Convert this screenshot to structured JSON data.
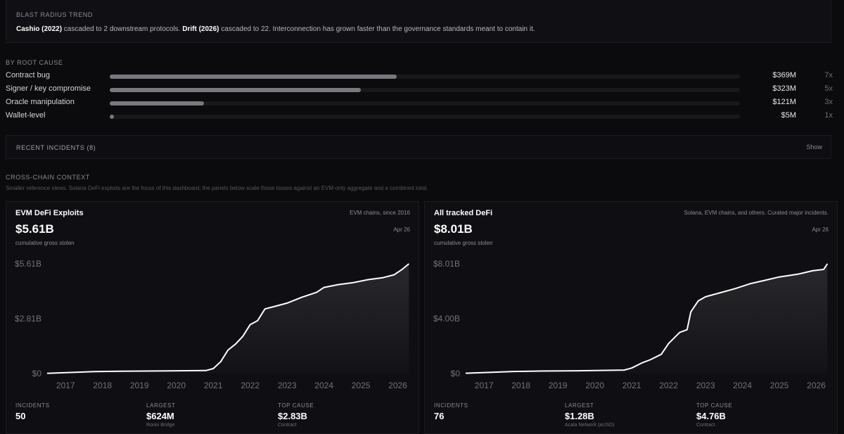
{
  "blast": {
    "title": "BLAST RADIUS TREND",
    "seg1_bold": "Cashio (2022)",
    "seg1_rest": " cascaded to 2 downstream protocols. ",
    "seg2_bold": "Drift (2026)",
    "seg2_rest": " cascaded to 22. Interconnection has grown faster than the governance standards meant to contain it."
  },
  "root_cause": {
    "title": "BY ROOT CAUSE",
    "max_amount_musd": 810,
    "items": [
      {
        "name": "Contract bug",
        "amount": "$369M",
        "amount_musd": 369,
        "count": "7x"
      },
      {
        "name": "Signer / key compromise",
        "amount": "$323M",
        "amount_musd": 323,
        "count": "5x"
      },
      {
        "name": "Oracle manipulation",
        "amount": "$121M",
        "amount_musd": 121,
        "count": "3x"
      },
      {
        "name": "Wallet-level",
        "amount": "$5M",
        "amount_musd": 5,
        "count": "1x"
      }
    ]
  },
  "recent": {
    "title": "RECENT INCIDENTS (8)",
    "toggle": "Show"
  },
  "cross_chain": {
    "title": "CROSS-CHAIN CONTEXT",
    "subtitle": "Smaller reference views. Solana DeFi exploits are the focus of this dashboard; the panels below scale those losses against an EVM-only aggregate and a combined total."
  },
  "panels": [
    {
      "name": "EVM DeFi Exploits",
      "meta": "EVM chains, since 2016",
      "total": "$5.61B",
      "date": "Apr 26",
      "caption": "cumulative gross stolen",
      "stats": [
        {
          "label": "INCIDENTS",
          "value": "50",
          "sub": ""
        },
        {
          "label": "LARGEST",
          "value": "$624M",
          "sub": "Ronin Bridge"
        },
        {
          "label": "TOP CAUSE",
          "value": "$2.83B",
          "sub": "Contract"
        }
      ]
    },
    {
      "name": "All tracked DeFi",
      "meta": "Solana, EVM chains, and others. Curated major incidents.",
      "total": "$8.01B",
      "date": "Apr 26",
      "caption": "cumulative gross stolen",
      "stats": [
        {
          "label": "INCIDENTS",
          "value": "76",
          "sub": ""
        },
        {
          "label": "LARGEST",
          "value": "$1.28B",
          "sub": "Acala Network (aUSD)"
        },
        {
          "label": "TOP CAUSE",
          "value": "$4.76B",
          "sub": "Contract"
        }
      ]
    }
  ],
  "chart_data": [
    {
      "type": "area",
      "title": "EVM DeFi Exploits",
      "x_ticks": [
        "2017",
        "2018",
        "2019",
        "2020",
        "2021",
        "2022",
        "2023",
        "2024",
        "2025",
        "2026"
      ],
      "y_ticks": [
        "$0",
        "$2.81B",
        "$5.61B"
      ],
      "xlim": [
        2016.5,
        2026.35
      ],
      "ylim": [
        0,
        5.61
      ],
      "series": [
        {
          "points": [
            [
              2016.5,
              0.01
            ],
            [
              2017.8,
              0.1
            ],
            [
              2018.5,
              0.12
            ],
            [
              2019.5,
              0.13
            ],
            [
              2020.8,
              0.15
            ],
            [
              2021.0,
              0.25
            ],
            [
              2021.2,
              0.6
            ],
            [
              2021.4,
              1.2
            ],
            [
              2021.6,
              1.5
            ],
            [
              2021.8,
              1.9
            ],
            [
              2022.0,
              2.5
            ],
            [
              2022.2,
              2.7
            ],
            [
              2022.4,
              3.3
            ],
            [
              2022.7,
              3.45
            ],
            [
              2023.0,
              3.6
            ],
            [
              2023.4,
              3.9
            ],
            [
              2023.8,
              4.15
            ],
            [
              2024.0,
              4.4
            ],
            [
              2024.4,
              4.55
            ],
            [
              2024.8,
              4.65
            ],
            [
              2025.2,
              4.8
            ],
            [
              2025.6,
              4.9
            ],
            [
              2025.9,
              5.05
            ],
            [
              2026.1,
              5.3
            ],
            [
              2026.3,
              5.61
            ]
          ]
        }
      ]
    },
    {
      "type": "area",
      "title": "All tracked DeFi",
      "x_ticks": [
        "2017",
        "2018",
        "2019",
        "2020",
        "2021",
        "2022",
        "2023",
        "2024",
        "2025",
        "2026"
      ],
      "y_ticks": [
        "$0",
        "$4.00B",
        "$8.01B"
      ],
      "xlim": [
        2016.5,
        2026.35
      ],
      "ylim": [
        0,
        8.01
      ],
      "series": [
        {
          "points": [
            [
              2016.5,
              0.02
            ],
            [
              2017.8,
              0.15
            ],
            [
              2018.5,
              0.18
            ],
            [
              2019.5,
              0.2
            ],
            [
              2020.8,
              0.25
            ],
            [
              2021.0,
              0.4
            ],
            [
              2021.3,
              0.8
            ],
            [
              2021.5,
              1.0
            ],
            [
              2021.8,
              1.4
            ],
            [
              2022.0,
              2.2
            ],
            [
              2022.3,
              3.0
            ],
            [
              2022.5,
              3.2
            ],
            [
              2022.6,
              4.5
            ],
            [
              2022.8,
              5.3
            ],
            [
              2023.0,
              5.6
            ],
            [
              2023.4,
              5.9
            ],
            [
              2023.8,
              6.2
            ],
            [
              2024.2,
              6.55
            ],
            [
              2024.6,
              6.8
            ],
            [
              2025.0,
              7.05
            ],
            [
              2025.5,
              7.25
            ],
            [
              2025.9,
              7.5
            ],
            [
              2026.2,
              7.6
            ],
            [
              2026.3,
              8.01
            ]
          ]
        }
      ]
    }
  ]
}
